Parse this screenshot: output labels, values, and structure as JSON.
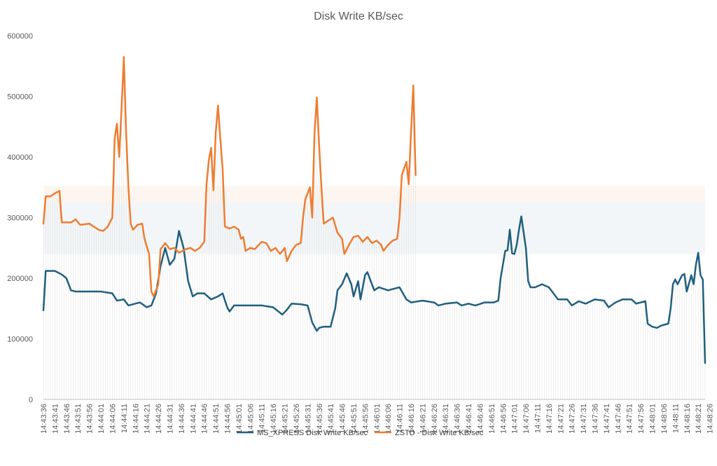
{
  "chart_data": {
    "type": "line",
    "title": "Disk Write KB/sec",
    "xlabel": "",
    "ylabel": "",
    "ylim": [
      0,
      600000
    ],
    "yticks": [
      0,
      100000,
      200000,
      300000,
      400000,
      500000,
      600000
    ],
    "x_tick_labels": [
      "14:43:36",
      "14:43:41",
      "14:43:46",
      "14:43:51",
      "14:43:56",
      "14:44:01",
      "14:44:06",
      "14:44:11",
      "14:44:16",
      "14:44:21",
      "14:44:26",
      "14:44:31",
      "14:44:36",
      "14:44:41",
      "14:44:46",
      "14:44:51",
      "14:44:56",
      "14:45:01",
      "14:45:06",
      "14:45:11",
      "14:45:16",
      "14:45:21",
      "14:45:26",
      "14:45:31",
      "14:45:36",
      "14:45:41",
      "14:45:46",
      "14:45:51",
      "14:45:56",
      "14:46:01",
      "14:46:06",
      "14:46:11",
      "14:46:16",
      "14:46:21",
      "14:46:26",
      "14:46:31",
      "14:46:36",
      "14:46:41",
      "14:46:46",
      "14:46:51",
      "14:46:56",
      "14:47:01",
      "14:47:06",
      "14:47:11",
      "14:47:16",
      "14:47:21",
      "14:47:26",
      "14:47:31",
      "14:47:36",
      "14:47:41",
      "14:47:46",
      "14:47:51",
      "14:47:56",
      "14:48:01",
      "14:48:06",
      "14:48:11",
      "14:48:16",
      "14:48:21",
      "14:48:26"
    ],
    "grid": false,
    "legend_position": "bottom",
    "series": [
      {
        "name": "MS_XPRESS Disk Write KB/sec",
        "color": "#1f5f7f",
        "keypoints": [
          [
            0,
            147000
          ],
          [
            1,
            212000
          ],
          [
            5,
            212000
          ],
          [
            8,
            206000
          ],
          [
            10,
            200000
          ],
          [
            12,
            180000
          ],
          [
            14,
            178000
          ],
          [
            20,
            178000
          ],
          [
            25,
            178000
          ],
          [
            30,
            175000
          ],
          [
            32,
            163000
          ],
          [
            35,
            165000
          ],
          [
            37,
            155000
          ],
          [
            39,
            157000
          ],
          [
            42,
            160000
          ],
          [
            45,
            152000
          ],
          [
            47,
            155000
          ],
          [
            49,
            175000
          ],
          [
            51,
            220000
          ],
          [
            53,
            250000
          ],
          [
            55,
            222000
          ],
          [
            57,
            232000
          ],
          [
            59,
            278000
          ],
          [
            61,
            250000
          ],
          [
            63,
            195000
          ],
          [
            65,
            170000
          ],
          [
            67,
            175000
          ],
          [
            70,
            175000
          ],
          [
            73,
            165000
          ],
          [
            76,
            170000
          ],
          [
            78,
            175000
          ],
          [
            80,
            152000
          ],
          [
            81,
            145000
          ],
          [
            83,
            155000
          ],
          [
            90,
            155000
          ],
          [
            95,
            155000
          ],
          [
            100,
            152000
          ],
          [
            104,
            140000
          ],
          [
            106,
            148000
          ],
          [
            108,
            158000
          ],
          [
            112,
            157000
          ],
          [
            115,
            155000
          ],
          [
            117,
            127000
          ],
          [
            119,
            113000
          ],
          [
            120,
            118000
          ],
          [
            122,
            120000
          ],
          [
            125,
            120000
          ],
          [
            127,
            150000
          ],
          [
            128,
            180000
          ],
          [
            130,
            190000
          ],
          [
            132,
            208000
          ],
          [
            134,
            190000
          ],
          [
            135,
            170000
          ],
          [
            137,
            195000
          ],
          [
            138,
            165000
          ],
          [
            140,
            205000
          ],
          [
            141,
            210000
          ],
          [
            142,
            200000
          ],
          [
            144,
            180000
          ],
          [
            146,
            185000
          ],
          [
            150,
            180000
          ],
          [
            155,
            185000
          ],
          [
            158,
            165000
          ],
          [
            160,
            160000
          ],
          [
            165,
            163000
          ],
          [
            170,
            160000
          ],
          [
            172,
            155000
          ],
          [
            175,
            158000
          ],
          [
            180,
            160000
          ],
          [
            182,
            155000
          ],
          [
            185,
            158000
          ],
          [
            188,
            155000
          ],
          [
            192,
            160000
          ],
          [
            196,
            160000
          ],
          [
            198,
            163000
          ],
          [
            199,
            200000
          ],
          [
            201,
            245000
          ],
          [
            202,
            246000
          ],
          [
            203,
            280000
          ],
          [
            204,
            241000
          ],
          [
            205,
            240000
          ],
          [
            206,
            255000
          ],
          [
            207,
            280000
          ],
          [
            208,
            302000
          ],
          [
            210,
            250000
          ],
          [
            211,
            195000
          ],
          [
            212,
            185000
          ],
          [
            214,
            185000
          ],
          [
            217,
            190000
          ],
          [
            220,
            185000
          ],
          [
            224,
            165000
          ],
          [
            228,
            165000
          ],
          [
            230,
            155000
          ],
          [
            233,
            162000
          ],
          [
            236,
            158000
          ],
          [
            240,
            165000
          ],
          [
            244,
            163000
          ],
          [
            246,
            152000
          ],
          [
            249,
            160000
          ],
          [
            252,
            165000
          ],
          [
            256,
            165000
          ],
          [
            258,
            158000
          ],
          [
            262,
            162000
          ],
          [
            263,
            125000
          ],
          [
            265,
            120000
          ],
          [
            267,
            118000
          ],
          [
            269,
            122000
          ],
          [
            272,
            125000
          ],
          [
            273,
            150000
          ],
          [
            274,
            190000
          ],
          [
            275,
            198000
          ],
          [
            276,
            190000
          ],
          [
            278,
            205000
          ],
          [
            279,
            207000
          ],
          [
            280,
            178000
          ],
          [
            282,
            205000
          ],
          [
            283,
            190000
          ],
          [
            284,
            222000
          ],
          [
            285,
            242000
          ],
          [
            286,
            205000
          ],
          [
            287,
            198000
          ],
          [
            288,
            60000
          ]
        ]
      },
      {
        "name": "ZSTD - Disk Write KB/sec",
        "color": "#ed7d31",
        "keypoints": [
          [
            0,
            290000
          ],
          [
            1,
            335000
          ],
          [
            3,
            335000
          ],
          [
            5,
            340000
          ],
          [
            7,
            344000
          ],
          [
            8,
            292000
          ],
          [
            12,
            292000
          ],
          [
            14,
            297000
          ],
          [
            16,
            288000
          ],
          [
            20,
            290000
          ],
          [
            24,
            280000
          ],
          [
            26,
            278000
          ],
          [
            28,
            285000
          ],
          [
            30,
            300000
          ],
          [
            31,
            430000
          ],
          [
            32,
            455000
          ],
          [
            33,
            400000
          ],
          [
            34,
            480000
          ],
          [
            35,
            565000
          ],
          [
            36,
            440000
          ],
          [
            37,
            350000
          ],
          [
            38,
            290000
          ],
          [
            39,
            280000
          ],
          [
            41,
            288000
          ],
          [
            43,
            290000
          ],
          [
            44,
            265000
          ],
          [
            46,
            240000
          ],
          [
            47,
            178000
          ],
          [
            48,
            170000
          ],
          [
            49,
            180000
          ],
          [
            50,
            190000
          ],
          [
            51,
            248000
          ],
          [
            53,
            258000
          ],
          [
            55,
            248000
          ],
          [
            57,
            250000
          ],
          [
            59,
            242000
          ],
          [
            62,
            248000
          ],
          [
            64,
            250000
          ],
          [
            66,
            245000
          ],
          [
            68,
            250000
          ],
          [
            70,
            260000
          ],
          [
            71,
            355000
          ],
          [
            72,
            395000
          ],
          [
            73,
            415000
          ],
          [
            74,
            345000
          ],
          [
            75,
            440000
          ],
          [
            76,
            485000
          ],
          [
            77,
            430000
          ],
          [
            78,
            380000
          ],
          [
            79,
            285000
          ],
          [
            81,
            282000
          ],
          [
            83,
            285000
          ],
          [
            85,
            280000
          ],
          [
            86,
            265000
          ],
          [
            87,
            268000
          ],
          [
            88,
            245000
          ],
          [
            90,
            250000
          ],
          [
            92,
            248000
          ],
          [
            95,
            260000
          ],
          [
            97,
            258000
          ],
          [
            99,
            245000
          ],
          [
            101,
            250000
          ],
          [
            103,
            240000
          ],
          [
            105,
            250000
          ],
          [
            106,
            228000
          ],
          [
            108,
            245000
          ],
          [
            110,
            255000
          ],
          [
            112,
            258000
          ],
          [
            113,
            300000
          ],
          [
            114,
            330000
          ],
          [
            116,
            350000
          ],
          [
            117,
            300000
          ],
          [
            118,
            440000
          ],
          [
            119,
            498000
          ],
          [
            120,
            420000
          ],
          [
            121,
            350000
          ],
          [
            122,
            290000
          ],
          [
            124,
            295000
          ],
          [
            126,
            300000
          ],
          [
            128,
            275000
          ],
          [
            130,
            265000
          ],
          [
            131,
            240000
          ],
          [
            133,
            255000
          ],
          [
            135,
            268000
          ],
          [
            137,
            270000
          ],
          [
            139,
            260000
          ],
          [
            141,
            268000
          ],
          [
            143,
            258000
          ],
          [
            145,
            262000
          ],
          [
            147,
            255000
          ],
          [
            148,
            245000
          ],
          [
            150,
            255000
          ],
          [
            152,
            262000
          ],
          [
            154,
            265000
          ],
          [
            155,
            300000
          ],
          [
            156,
            370000
          ],
          [
            158,
            392000
          ],
          [
            159,
            355000
          ],
          [
            160,
            440000
          ],
          [
            161,
            518000
          ],
          [
            162,
            370000
          ]
        ]
      }
    ]
  }
}
